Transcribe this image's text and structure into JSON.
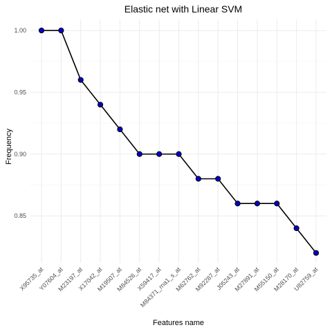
{
  "chart_data": {
    "type": "line",
    "title": "Elastic net with Linear SVM",
    "xlabel": "Features name",
    "ylabel": "Frequency",
    "categories": [
      "X95735_at",
      "Y07604_at",
      "M23197_at",
      "X17042_at",
      "M19507_at",
      "M84526_at",
      "X59417_at",
      "M84371_rna1_s_at",
      "M62762_at",
      "M92287_at",
      "J05243_at",
      "M27891_at",
      "M55150_at",
      "M28170_at",
      "U82759_at"
    ],
    "values": [
      1.0,
      1.0,
      0.96,
      0.94,
      0.92,
      0.9,
      0.9,
      0.9,
      0.88,
      0.88,
      0.86,
      0.86,
      0.86,
      0.84,
      0.82
    ],
    "ylim": [
      0.812,
      1.009
    ],
    "yticks": [
      0.85,
      0.9,
      0.95,
      1.0
    ],
    "ytick_labels": [
      "0.85",
      "0.90",
      "0.95",
      "1.00"
    ],
    "grid": true,
    "colors": {
      "point": "#0000cc",
      "line": "#000000",
      "grid": "#ebebeb"
    }
  }
}
